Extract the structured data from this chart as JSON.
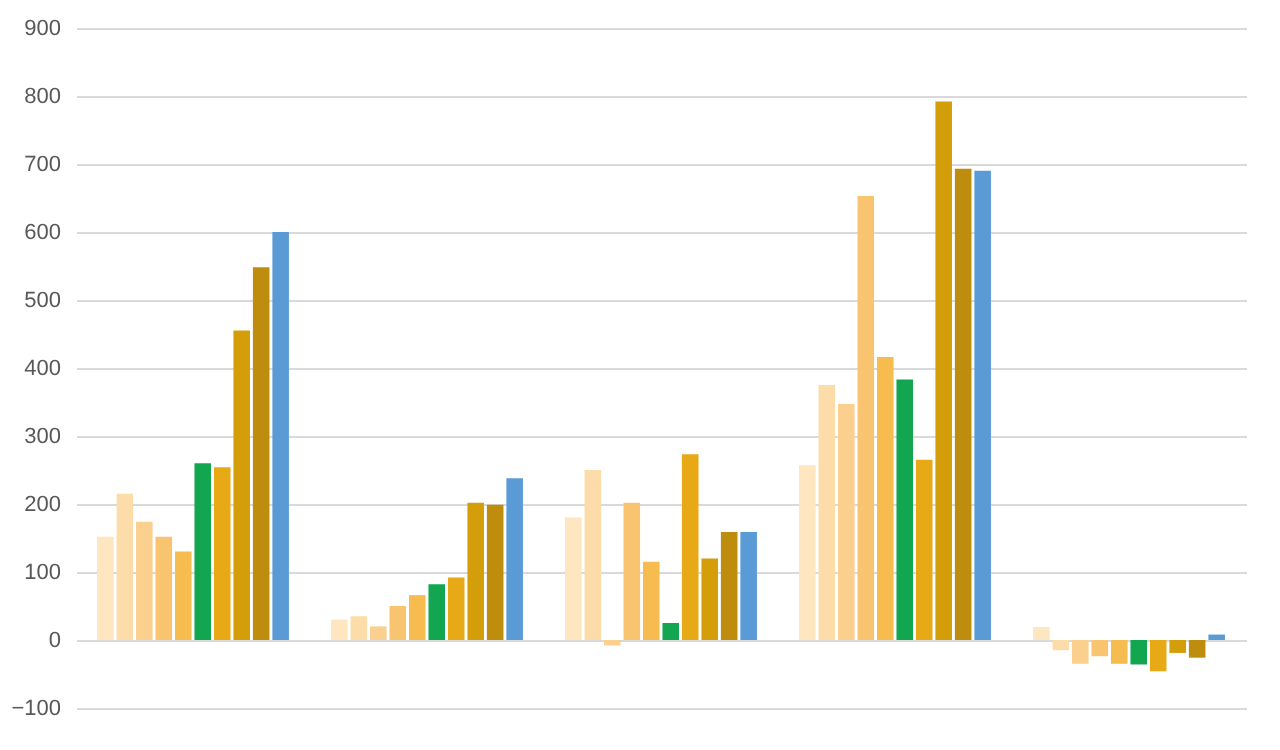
{
  "chart_data": {
    "type": "bar",
    "categories": [
      null,
      null,
      null,
      null,
      null
    ],
    "series": [
      {
        "color": "#fde6c0",
        "values": [
          152,
          30,
          180,
          257,
          19
        ]
      },
      {
        "color": "#fcdca8",
        "values": [
          215,
          35,
          250,
          375,
          -15
        ]
      },
      {
        "color": "#fbd08e",
        "values": [
          174,
          20,
          -8,
          347,
          -35
        ]
      },
      {
        "color": "#f9c46f",
        "values": [
          152,
          50,
          202,
          653,
          -24
        ]
      },
      {
        "color": "#f7bc50",
        "values": [
          130,
          66,
          115,
          416,
          -35
        ]
      },
      {
        "color": "#12a650",
        "values": [
          260,
          82,
          25,
          383,
          -36
        ]
      },
      {
        "color": "#e8a917",
        "values": [
          254,
          92,
          273,
          265,
          -46
        ]
      },
      {
        "color": "#d49d0a",
        "values": [
          455,
          202,
          120,
          792,
          -19
        ]
      },
      {
        "color": "#be8d0e",
        "values": [
          548,
          199,
          159,
          693,
          -26
        ]
      },
      {
        "color": "#5b9bd5",
        "values": [
          600,
          238,
          159,
          690,
          8
        ]
      }
    ],
    "ylim": [
      -100,
      900
    ],
    "yticks": [
      -100,
      0,
      100,
      200,
      300,
      400,
      500,
      600,
      700,
      800,
      900
    ],
    "grid": "y"
  }
}
